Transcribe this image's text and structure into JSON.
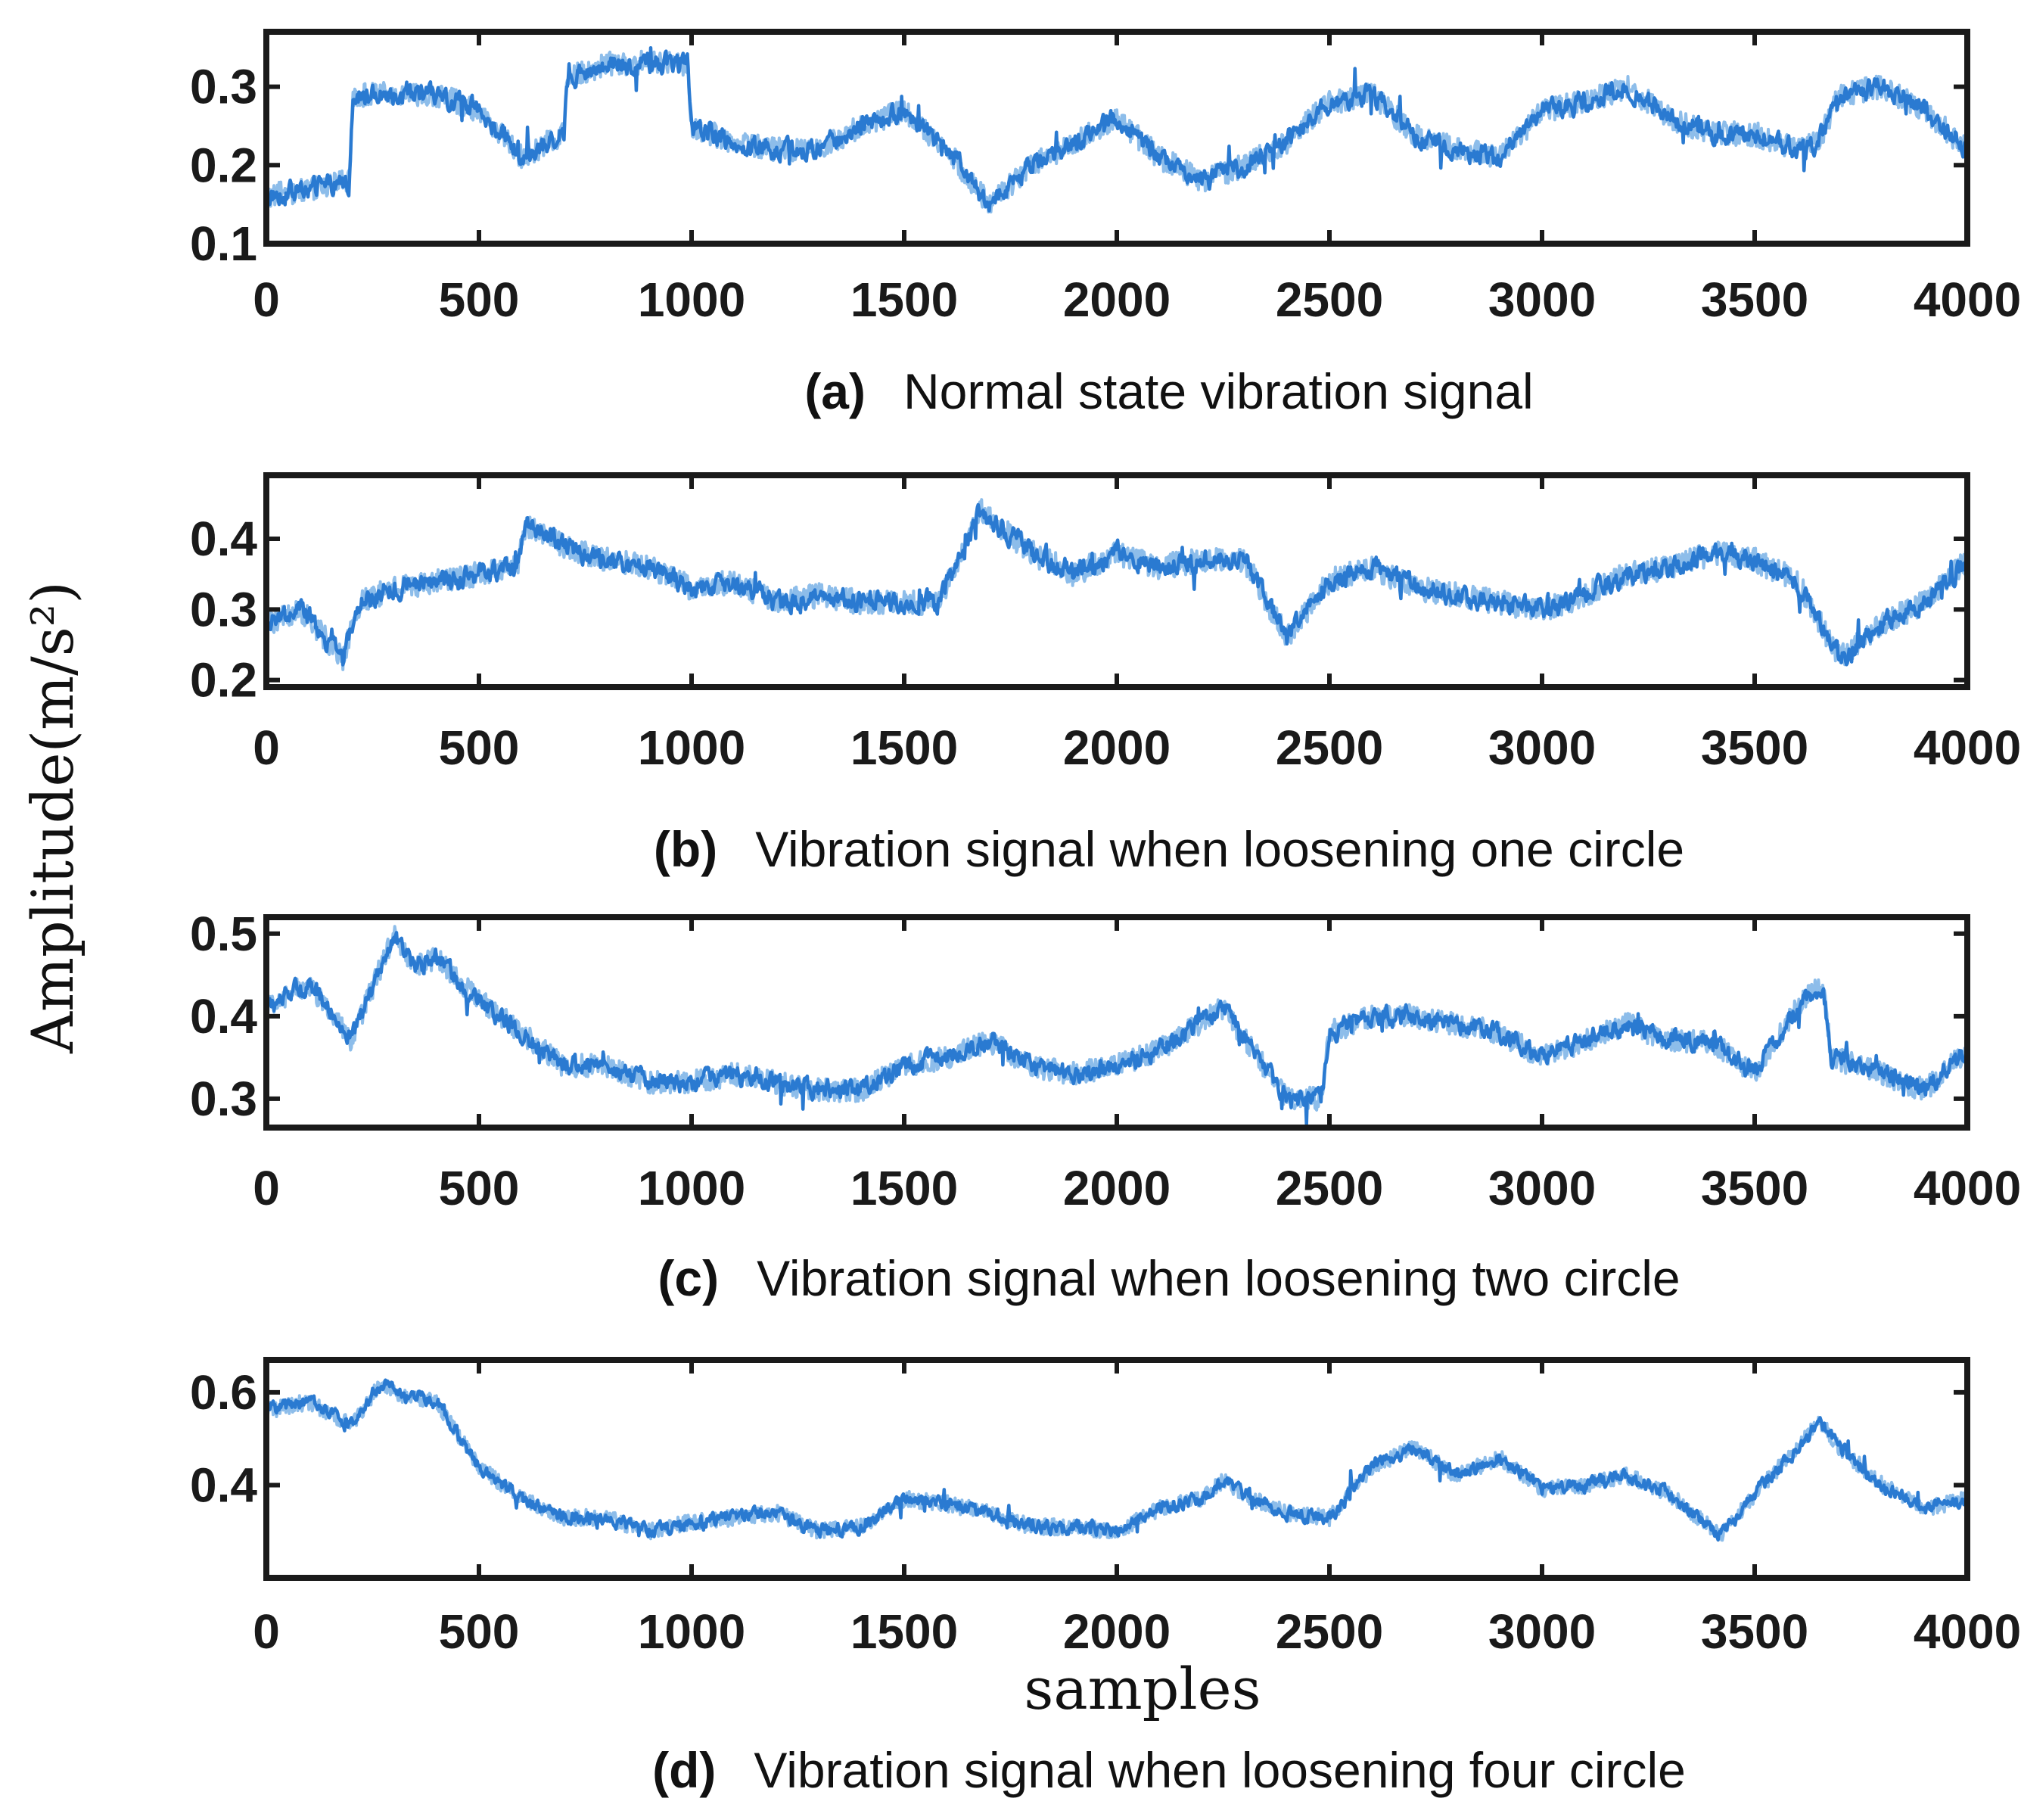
{
  "figure": {
    "ylabel": "Amplitude(m/s²)",
    "xlabel": "samples",
    "line_color": "#2a7ad1",
    "axis_color": "#1a1a1a"
  },
  "chart_data": [
    {
      "type": "line",
      "letter": "(a)",
      "caption": "Normal state vibration signal",
      "xlim": [
        0,
        4000
      ],
      "ylim": [
        0.1,
        0.37
      ],
      "xticks": [
        0,
        500,
        1000,
        1500,
        2000,
        2500,
        3000,
        3500,
        4000
      ],
      "xtick_labels": [
        "0",
        "500",
        "1000",
        "1500",
        "2000",
        "2500",
        "3000",
        "3500",
        "4000"
      ],
      "yticks": [
        0.1,
        0.2,
        0.3
      ],
      "ytick_labels": [
        "0.1",
        "0.2",
        "0.3"
      ],
      "noise": 0.022,
      "series": [
        {
          "name": "Normal state",
          "x": [
            0,
            100,
            195,
            205,
            300,
            400,
            500,
            600,
            700,
            705,
            800,
            900,
            990,
            1000,
            1100,
            1200,
            1300,
            1400,
            1500,
            1600,
            1700,
            1800,
            1900,
            2000,
            2100,
            2200,
            2300,
            2400,
            2500,
            2600,
            2700,
            2800,
            2900,
            3000,
            3100,
            3200,
            3300,
            3400,
            3500,
            3600,
            3650,
            3700,
            3800,
            3900,
            4000
          ],
          "values": [
            0.16,
            0.17,
            0.18,
            0.29,
            0.29,
            0.29,
            0.27,
            0.21,
            0.24,
            0.31,
            0.33,
            0.33,
            0.33,
            0.25,
            0.23,
            0.22,
            0.22,
            0.25,
            0.27,
            0.22,
            0.15,
            0.2,
            0.23,
            0.26,
            0.21,
            0.18,
            0.2,
            0.23,
            0.28,
            0.29,
            0.24,
            0.22,
            0.21,
            0.27,
            0.28,
            0.3,
            0.26,
            0.24,
            0.24,
            0.22,
            0.23,
            0.29,
            0.3,
            0.27,
            0.22
          ]
        }
      ]
    },
    {
      "type": "line",
      "letter": "(b)",
      "caption": "Vibration signal when loosening one circle",
      "xlim": [
        0,
        4000
      ],
      "ylim": [
        0.19,
        0.49
      ],
      "xticks": [
        0,
        500,
        1000,
        1500,
        2000,
        2500,
        3000,
        3500,
        4000
      ],
      "xtick_labels": [
        "0",
        "500",
        "1000",
        "1500",
        "2000",
        "2500",
        "3000",
        "3500",
        "4000"
      ],
      "yticks": [
        0.2,
        0.3,
        0.4
      ],
      "ytick_labels": [
        "0.2",
        "0.3",
        "0.4"
      ],
      "noise": 0.025,
      "series": [
        {
          "name": "Loosening one circle",
          "x": [
            0,
            80,
            180,
            220,
            300,
            400,
            500,
            590,
            610,
            700,
            800,
            900,
            1000,
            1100,
            1200,
            1300,
            1400,
            1500,
            1580,
            1650,
            1680,
            1800,
            1900,
            2000,
            2100,
            2200,
            2300,
            2400,
            2500,
            2600,
            2700,
            2800,
            2900,
            3000,
            3100,
            3200,
            3300,
            3400,
            3500,
            3600,
            3700,
            3800,
            3900,
            4000
          ],
          "values": [
            0.28,
            0.3,
            0.23,
            0.31,
            0.33,
            0.34,
            0.35,
            0.36,
            0.42,
            0.39,
            0.37,
            0.36,
            0.33,
            0.34,
            0.31,
            0.32,
            0.31,
            0.31,
            0.31,
            0.4,
            0.44,
            0.38,
            0.35,
            0.38,
            0.36,
            0.37,
            0.37,
            0.26,
            0.34,
            0.36,
            0.33,
            0.32,
            0.31,
            0.3,
            0.32,
            0.35,
            0.36,
            0.38,
            0.37,
            0.34,
            0.23,
            0.28,
            0.31,
            0.37
          ]
        }
      ]
    },
    {
      "type": "line",
      "letter": "(c)",
      "caption": "Vibration signal when loosening two circle",
      "xlim": [
        0,
        4000
      ],
      "ylim": [
        0.265,
        0.52
      ],
      "xticks": [
        0,
        500,
        1000,
        1500,
        2000,
        2500,
        3000,
        3500,
        4000
      ],
      "xtick_labels": [
        "0",
        "500",
        "1000",
        "1500",
        "2000",
        "2500",
        "3000",
        "3500",
        "4000"
      ],
      "yticks": [
        0.3,
        0.4,
        0.5
      ],
      "ytick_labels": [
        "0.3",
        "0.4",
        "0.5"
      ],
      "noise": 0.02,
      "series": [
        {
          "name": "Loosening two circle",
          "x": [
            0,
            100,
            200,
            300,
            350,
            400,
            500,
            600,
            700,
            800,
            900,
            1000,
            1100,
            1200,
            1300,
            1400,
            1500,
            1600,
            1700,
            1800,
            1900,
            2000,
            2100,
            2250,
            2400,
            2480,
            2500,
            2600,
            2700,
            2800,
            2900,
            3000,
            3100,
            3200,
            3300,
            3400,
            3500,
            3600,
            3660,
            3680,
            3800,
            3900,
            4000
          ],
          "values": [
            0.41,
            0.44,
            0.37,
            0.5,
            0.46,
            0.47,
            0.42,
            0.38,
            0.34,
            0.34,
            0.32,
            0.32,
            0.33,
            0.32,
            0.31,
            0.31,
            0.34,
            0.35,
            0.37,
            0.34,
            0.33,
            0.34,
            0.36,
            0.41,
            0.3,
            0.3,
            0.38,
            0.4,
            0.4,
            0.39,
            0.38,
            0.35,
            0.37,
            0.39,
            0.37,
            0.37,
            0.33,
            0.41,
            0.44,
            0.35,
            0.33,
            0.31,
            0.36
          ]
        }
      ]
    },
    {
      "type": "line",
      "letter": "(d)",
      "caption": "Vibration signal when loosening four circle",
      "xlim": [
        0,
        4000
      ],
      "ylim": [
        0.2,
        0.67
      ],
      "xticks": [
        0,
        500,
        1000,
        1500,
        2000,
        2500,
        3000,
        3500,
        4000
      ],
      "xtick_labels": [
        "0",
        "500",
        "1000",
        "1500",
        "2000",
        "2500",
        "3000",
        "3500",
        "4000"
      ],
      "yticks": [
        0.4,
        0.6
      ],
      "ytick_labels": [
        "0.4",
        "0.6"
      ],
      "noise": 0.025,
      "series": [
        {
          "name": "Loosening four circle",
          "x": [
            0,
            100,
            200,
            270,
            300,
            400,
            500,
            600,
            700,
            800,
            900,
            1000,
            1100,
            1200,
            1300,
            1400,
            1500,
            1600,
            1700,
            1800,
            1900,
            2000,
            2100,
            2200,
            2250,
            2300,
            2400,
            2500,
            2600,
            2700,
            2800,
            2900,
            3000,
            3100,
            3200,
            3300,
            3420,
            3500,
            3600,
            3650,
            3700,
            3800,
            3900,
            4000
          ],
          "values": [
            0.56,
            0.58,
            0.53,
            0.62,
            0.6,
            0.58,
            0.44,
            0.37,
            0.33,
            0.33,
            0.3,
            0.32,
            0.33,
            0.34,
            0.3,
            0.31,
            0.37,
            0.36,
            0.34,
            0.31,
            0.31,
            0.3,
            0.35,
            0.37,
            0.41,
            0.38,
            0.34,
            0.33,
            0.44,
            0.48,
            0.42,
            0.46,
            0.39,
            0.4,
            0.42,
            0.38,
            0.29,
            0.38,
            0.48,
            0.54,
            0.48,
            0.4,
            0.35,
            0.37
          ]
        }
      ]
    }
  ]
}
